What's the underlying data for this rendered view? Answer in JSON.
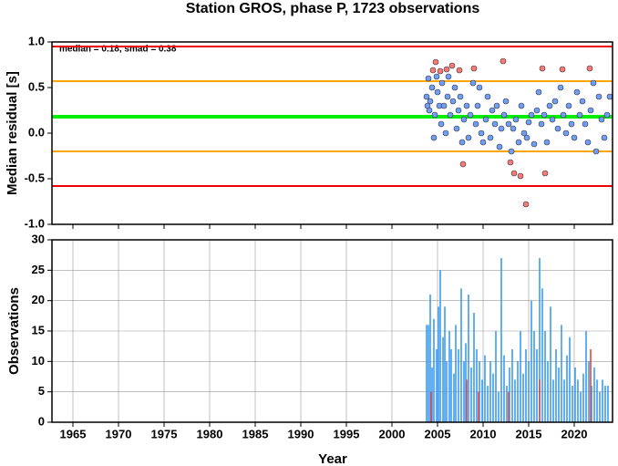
{
  "chart_data": [
    {
      "type": "scatter",
      "title": "Station GROS, phase P, 1723 observations",
      "ylabel": "Median residual [s]",
      "annotation": "median = 0.18, smad = 0.38",
      "xlim": [
        1962.7,
        2024.2
      ],
      "ylim": [
        -1,
        1
      ],
      "yticks": [
        {
          "value": -1,
          "label": "-1.0"
        },
        -0.5,
        {
          "value": 0,
          "label": "0.0"
        },
        0.5,
        {
          "value": 1,
          "label": "1.0"
        }
      ],
      "grid": false,
      "hlines": [
        {
          "value": 0.95,
          "color": "#ee0000"
        },
        {
          "value": 0.57,
          "color": "#ffa500"
        },
        {
          "value": 0.18,
          "color": "#00ee00"
        },
        {
          "value": -0.2,
          "color": "#ffa500"
        },
        {
          "value": -0.58,
          "color": "#ee0000"
        }
      ],
      "series": [
        {
          "color": "#6f9ff5",
          "x": [
            2003.8,
            2003.9,
            2004.0,
            2004.1,
            2004.2,
            2004.4,
            2004.6,
            2004.7,
            2004.9,
            2005.0,
            2005.2,
            2005.4,
            2005.5,
            2005.7,
            2005.9,
            2006.1,
            2006.2,
            2006.4,
            2006.7,
            2006.9,
            2007.1,
            2007.3,
            2007.5,
            2007.7,
            2007.9,
            2008.2,
            2008.4,
            2008.6,
            2008.9,
            2009.2,
            2009.4,
            2009.6,
            2009.8,
            2010.0,
            2010.3,
            2010.5,
            2010.8,
            2011.0,
            2011.3,
            2011.5,
            2011.8,
            2012.0,
            2012.3,
            2012.5,
            2012.8,
            2013.1,
            2013.3,
            2013.6,
            2013.9,
            2014.2,
            2014.5,
            2014.8,
            2015.0,
            2015.3,
            2015.6,
            2015.9,
            2016.1,
            2016.4,
            2016.7,
            2017.0,
            2017.3,
            2017.6,
            2017.9,
            2018.2,
            2018.5,
            2018.8,
            2019.1,
            2019.4,
            2019.7,
            2020.0,
            2020.3,
            2020.6,
            2020.9,
            2021.2,
            2021.5,
            2021.8,
            2022.1,
            2022.4,
            2022.7,
            2023.0,
            2023.3,
            2023.6,
            2023.9
          ],
          "values": [
            0.4,
            0.3,
            0.6,
            0.25,
            0.35,
            0.5,
            -0.05,
            0.2,
            0.62,
            0.45,
            0.3,
            0.1,
            0.55,
            0.3,
            0.0,
            0.4,
            0.62,
            0.2,
            0.35,
            0.5,
            0.05,
            0.25,
            0.4,
            -0.1,
            0.15,
            0.3,
            -0.05,
            0.2,
            0.55,
            0.1,
            0.3,
            0.5,
            0.0,
            -0.1,
            0.15,
            0.4,
            -0.05,
            0.25,
            0.1,
            0.3,
            -0.15,
            0.05,
            0.2,
            0.35,
            0.1,
            -0.2,
            0.05,
            0.15,
            -0.1,
            0.3,
            0.0,
            -0.05,
            0.12,
            0.2,
            -0.12,
            0.25,
            0.45,
            0.1,
            0.2,
            -0.1,
            0.3,
            0.15,
            0.35,
            0.05,
            0.5,
            0.2,
            0.0,
            0.3,
            0.1,
            -0.05,
            0.45,
            0.2,
            0.35,
            0.1,
            -0.1,
            0.25,
            0.55,
            -0.2,
            0.4,
            0.15,
            -0.05,
            0.2,
            0.4
          ]
        },
        {
          "color": "#f87a72",
          "x": [
            2004.5,
            2004.8,
            2005.3,
            2006.0,
            2006.6,
            2007.4,
            2007.8,
            2009.0,
            2012.2,
            2013.0,
            2013.4,
            2014.1,
            2014.7,
            2016.5,
            2016.8,
            2018.7,
            2021.7
          ],
          "values": [
            0.69,
            0.78,
            0.68,
            0.7,
            0.74,
            0.69,
            -0.34,
            0.71,
            0.79,
            -0.32,
            -0.44,
            -0.47,
            -0.78,
            0.71,
            -0.44,
            0.7,
            0.71
          ]
        }
      ]
    },
    {
      "type": "bar",
      "ylabel": "Observations",
      "xlabel": "Year",
      "xlim": [
        1962.7,
        2024.2
      ],
      "ylim": [
        0,
        30
      ],
      "xticks": [
        1965,
        1970,
        1975,
        1980,
        1985,
        1990,
        1995,
        2000,
        2005,
        2010,
        2015,
        2020
      ],
      "yticks": [
        0,
        5,
        10,
        15,
        20,
        25,
        30
      ],
      "grid": true,
      "series": [
        {
          "color": "#3b9cf0",
          "x": [
            2003.8,
            2004.0,
            2004.2,
            2004.4,
            2004.6,
            2004.9,
            2005.1,
            2005.3,
            2005.6,
            2005.8,
            2006.0,
            2006.3,
            2006.5,
            2006.8,
            2007.0,
            2007.3,
            2007.6,
            2007.9,
            2008.1,
            2008.4,
            2008.7,
            2009.0,
            2009.3,
            2009.6,
            2009.9,
            2010.2,
            2010.5,
            2010.8,
            2011.1,
            2011.4,
            2011.7,
            2012.0,
            2012.3,
            2012.6,
            2012.9,
            2013.2,
            2013.5,
            2013.8,
            2014.1,
            2014.4,
            2014.7,
            2015.0,
            2015.3,
            2015.6,
            2015.9,
            2016.2,
            2016.5,
            2016.8,
            2017.1,
            2017.4,
            2017.7,
            2018.0,
            2018.3,
            2018.6,
            2018.9,
            2019.2,
            2019.5,
            2019.8,
            2020.1,
            2020.4,
            2020.7,
            2021.0,
            2021.3,
            2021.6,
            2021.9,
            2022.2,
            2022.5,
            2022.8,
            2023.1,
            2023.4,
            2023.7
          ],
          "values": [
            16,
            16,
            21,
            9,
            17,
            12,
            19,
            25,
            14,
            19,
            10,
            15,
            12,
            8,
            16,
            12,
            22,
            10,
            13,
            21,
            9,
            18,
            12,
            10,
            7,
            11,
            6,
            10,
            8,
            15,
            5,
            27,
            11,
            6,
            9,
            12,
            7,
            10,
            15,
            8,
            12,
            10,
            20,
            15,
            12,
            27,
            22,
            15,
            10,
            19,
            7,
            12,
            9,
            16,
            7,
            11,
            14,
            6,
            9,
            7,
            5,
            8,
            15,
            10,
            6,
            9,
            7,
            5,
            7,
            6,
            6
          ]
        },
        {
          "color": "#e04848",
          "x": [
            2004.3,
            2008.2,
            2009.5,
            2012.8,
            2016.2,
            2021.8
          ],
          "values": [
            5,
            7,
            5,
            5,
            7,
            12
          ]
        }
      ]
    }
  ]
}
